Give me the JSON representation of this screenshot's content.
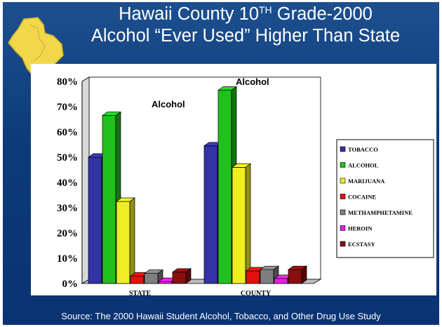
{
  "title": {
    "line1_pre": "Hawaii County 10",
    "line1_sup": "TH",
    "line1_post": " Grade-2000",
    "line2": "Alcohol “Ever Used” Higher Than State"
  },
  "footer": "Source:  The 2000 Hawaii Student Alcohol, Tobacco, and Other Drug Use Study",
  "colors": {
    "background": "#0c3a78",
    "island": "#f0d84a"
  },
  "chart_data": {
    "type": "bar",
    "categories": [
      "STATE",
      "COUNTY"
    ],
    "series": [
      {
        "name": "TOBACCO",
        "color": "#3333a6",
        "values": [
          50,
          54.5
        ]
      },
      {
        "name": "ALCOHOL",
        "color": "#22c01e",
        "values": [
          66.5,
          76.5
        ]
      },
      {
        "name": "MARIJUANA",
        "color": "#eeee22",
        "values": [
          32.5,
          46
        ]
      },
      {
        "name": "COCAINE",
        "color": "#e41010",
        "values": [
          3,
          5
        ]
      },
      {
        "name": "METHAMPHETAMINE",
        "color": "#7f7f7f",
        "values": [
          4,
          5.5
        ]
      },
      {
        "name": "HEROIN",
        "color": "#e81ce8",
        "values": [
          0.8,
          2
        ]
      },
      {
        "name": "ECSTASY",
        "color": "#8a0e0e",
        "values": [
          4.5,
          5.5
        ]
      }
    ],
    "yticks": [
      "0%",
      "10%",
      "20%",
      "30%",
      "40%",
      "50%",
      "60%",
      "70%",
      "80%"
    ],
    "ylim": [
      0,
      80
    ],
    "annotations": [
      "Alcohol",
      "Alcohol"
    ],
    "legend": "right",
    "grid": true
  }
}
